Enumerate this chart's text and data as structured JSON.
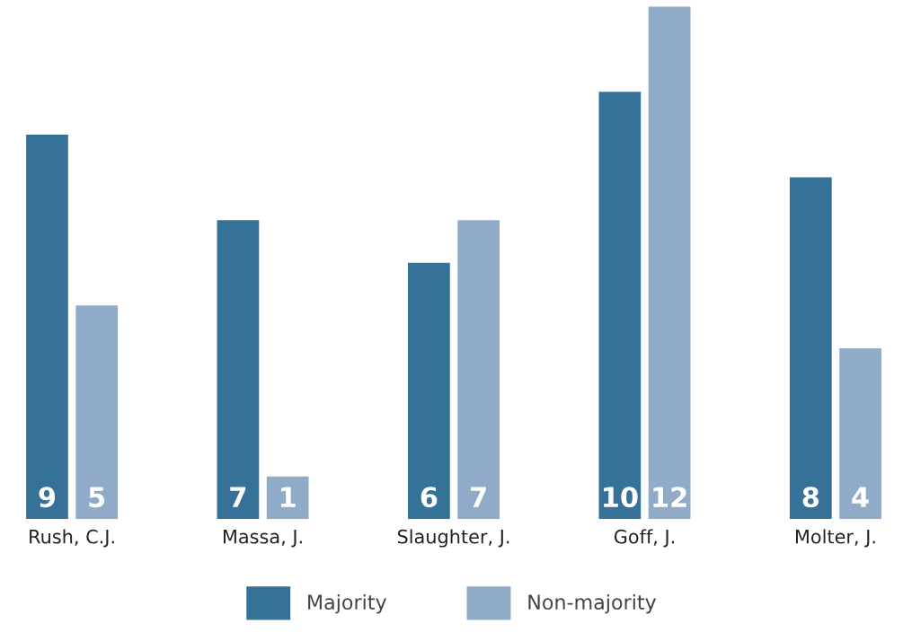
{
  "chart_data": {
    "type": "bar",
    "categories": [
      "Rush, C.J.",
      "Massa, J.",
      "Slaughter, J.",
      "Goff, J.",
      "Molter, J."
    ],
    "series": [
      {
        "name": "Majority",
        "color": "#367297",
        "values": [
          9,
          7,
          6,
          10,
          8
        ]
      },
      {
        "name": "Non-majority",
        "color": "#8fabc7",
        "values": [
          5,
          1,
          7,
          12,
          4
        ]
      }
    ],
    "data_labels": true,
    "grid": false,
    "legend": "bottom"
  }
}
